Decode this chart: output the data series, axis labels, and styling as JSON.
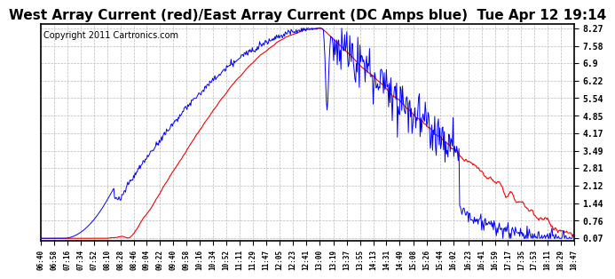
{
  "title": "West Array Current (red)/East Array Current (DC Amps blue)  Tue Apr 12 19:14",
  "copyright": "Copyright 2011 Cartronics.com",
  "yticks": [
    0.07,
    0.76,
    1.44,
    2.12,
    2.81,
    3.49,
    4.17,
    4.85,
    5.54,
    6.22,
    6.9,
    7.58,
    8.27
  ],
  "ymin": 0.07,
  "ymax": 8.27,
  "bg_color": "#ffffff",
  "grid_color": "#bbbbbb",
  "red_color": "#ff0000",
  "blue_color": "#0000ff",
  "title_fontsize": 11,
  "copyright_fontsize": 7,
  "xtick_labels": [
    "06:40",
    "06:58",
    "07:16",
    "07:34",
    "07:52",
    "08:10",
    "08:28",
    "08:46",
    "09:04",
    "09:22",
    "09:40",
    "09:58",
    "10:16",
    "10:34",
    "10:52",
    "11:11",
    "11:29",
    "11:47",
    "12:05",
    "12:23",
    "12:41",
    "13:00",
    "13:19",
    "13:37",
    "13:55",
    "14:13",
    "14:31",
    "14:49",
    "15:08",
    "15:26",
    "15:44",
    "16:02",
    "16:23",
    "16:41",
    "16:59",
    "17:17",
    "17:35",
    "17:53",
    "18:11",
    "18:29",
    "18:47"
  ],
  "n_xticks": 41
}
